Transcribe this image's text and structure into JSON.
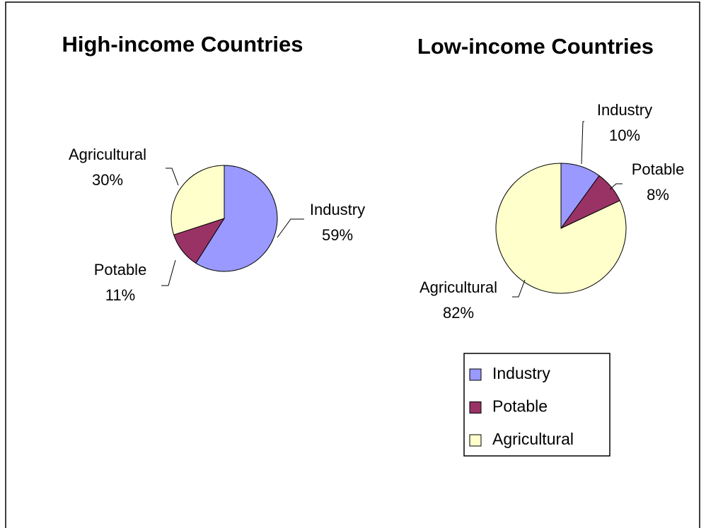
{
  "chart_data": [
    {
      "type": "pie",
      "title": "High-income Countries",
      "categories": [
        "Industry",
        "Potable",
        "Agricultural"
      ],
      "values": [
        59,
        11,
        30
      ],
      "value_labels": [
        "59%",
        "11%",
        "30%"
      ],
      "colors": [
        "#9999ff",
        "#993366",
        "#ffffcc"
      ],
      "legend": false
    },
    {
      "type": "pie",
      "title": "Low-income Countries",
      "categories": [
        "Industry",
        "Potable",
        "Agricultural"
      ],
      "values": [
        10,
        8,
        82
      ],
      "value_labels": [
        "10%",
        "8%",
        "82%"
      ],
      "colors": [
        "#9999ff",
        "#993366",
        "#ffffcc"
      ],
      "legend": true
    }
  ]
}
